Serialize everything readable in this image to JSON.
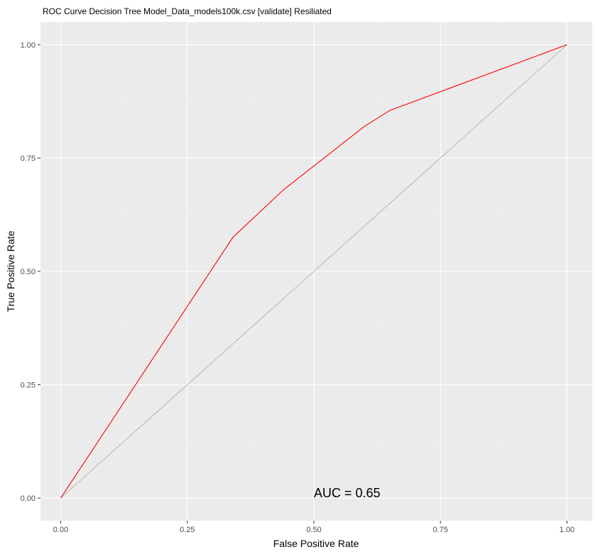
{
  "chart_data": {
    "type": "line",
    "title": "ROC Curve Decision Tree Model_Data_models100k.csv [validate] Resiliated",
    "xlabel": "False Positive Rate",
    "ylabel": "True Positive Rate",
    "xlim": [
      -0.04,
      1.05
    ],
    "ylim": [
      -0.05,
      1.05
    ],
    "x_ticks": [
      0.0,
      0.25,
      0.5,
      0.75,
      1.0
    ],
    "y_ticks": [
      0.0,
      0.25,
      0.5,
      0.75,
      1.0
    ],
    "x_tick_labels": [
      "0.00",
      "0.25",
      "0.50",
      "0.75",
      "1.00"
    ],
    "y_tick_labels": [
      "0.00",
      "0.25",
      "0.50",
      "0.75",
      "1.00"
    ],
    "grid": true,
    "series": [
      {
        "color": "#ff0000",
        "x": [
          0.0,
          0.34,
          0.44,
          0.6,
          0.65,
          1.0
        ],
        "y": [
          0.0,
          0.575,
          0.68,
          0.82,
          0.855,
          1.0
        ]
      },
      {
        "color": "#a0a0a0",
        "x": [
          0.0,
          1.0
        ],
        "y": [
          0.0,
          1.0
        ]
      }
    ],
    "annotations": [
      {
        "text": "AUC = 0.65",
        "x": 0.5,
        "y": 0.0
      }
    ]
  }
}
